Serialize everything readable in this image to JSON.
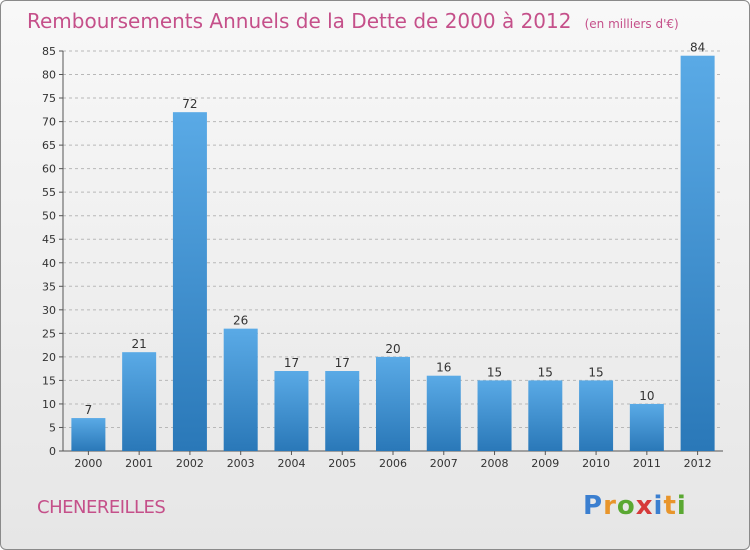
{
  "title": "Remboursements Annuels de la Dette de 2000 à 2012",
  "subtitle": "(en milliers d'€)",
  "commune": "CHENEREILLES",
  "logo": {
    "text": "Proxiti",
    "letters": [
      {
        "ch": "P",
        "color": "#3b7fd0"
      },
      {
        "ch": "r",
        "color": "#e8952b"
      },
      {
        "ch": "o",
        "color": "#5aa832"
      },
      {
        "ch": "x",
        "color": "#d63a3a"
      },
      {
        "ch": "i",
        "color": "#3b7fd0"
      },
      {
        "ch": "t",
        "color": "#e8952b"
      },
      {
        "ch": "i",
        "color": "#5aa832"
      }
    ]
  },
  "colors": {
    "bar_light": "#5aaae6",
    "bar_dark": "#2a78b8",
    "grid": "#b8b8b8",
    "axis_text": "#333333"
  },
  "chart_data": {
    "type": "bar",
    "categories": [
      "2000",
      "2001",
      "2002",
      "2003",
      "2004",
      "2005",
      "2006",
      "2007",
      "2008",
      "2009",
      "2010",
      "2011",
      "2012"
    ],
    "values": [
      7,
      21,
      72,
      26,
      17,
      17,
      20,
      16,
      15,
      15,
      15,
      10,
      84
    ],
    "ylim": [
      0,
      85
    ],
    "yticks": [
      0,
      5,
      10,
      15,
      20,
      25,
      30,
      35,
      40,
      45,
      50,
      55,
      60,
      65,
      70,
      75,
      80,
      85
    ],
    "grid": true,
    "grid_style": "dashed-horizontal"
  }
}
